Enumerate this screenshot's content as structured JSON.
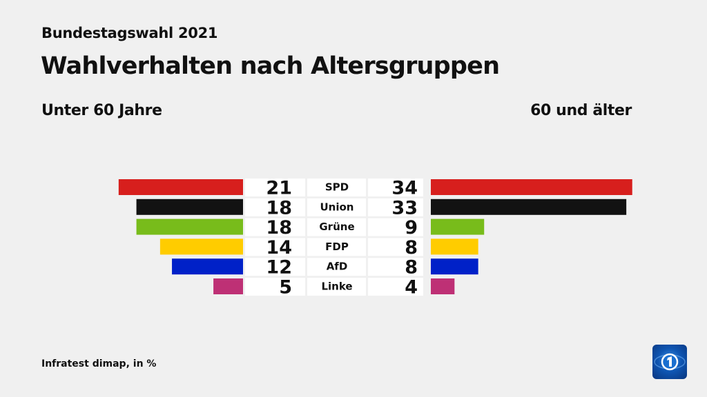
{
  "header": {
    "supertitle": "Bundestagswahl 2021",
    "title": "Wahlverhalten nach Altersgruppen"
  },
  "footer": {
    "source": "Infratest dimap, in %"
  },
  "logo": {
    "icon": "ard-tagesschau-logo"
  },
  "chart_data": {
    "type": "bar",
    "orientation": "horizontal-butterfly",
    "categories": [
      "SPD",
      "Union",
      "Grüne",
      "FDP",
      "AfD",
      "Linke"
    ],
    "colors": [
      "#d71f1d",
      "#121212",
      "#78bc1b",
      "#ffcc00",
      "#0021c8",
      "#be3075"
    ],
    "series": [
      {
        "name": "Unter 60 Jahre",
        "values": [
          21,
          18,
          18,
          14,
          12,
          5
        ]
      },
      {
        "name": "60 und älter",
        "values": [
          34,
          33,
          9,
          8,
          8,
          4
        ]
      }
    ],
    "unit": "%"
  }
}
